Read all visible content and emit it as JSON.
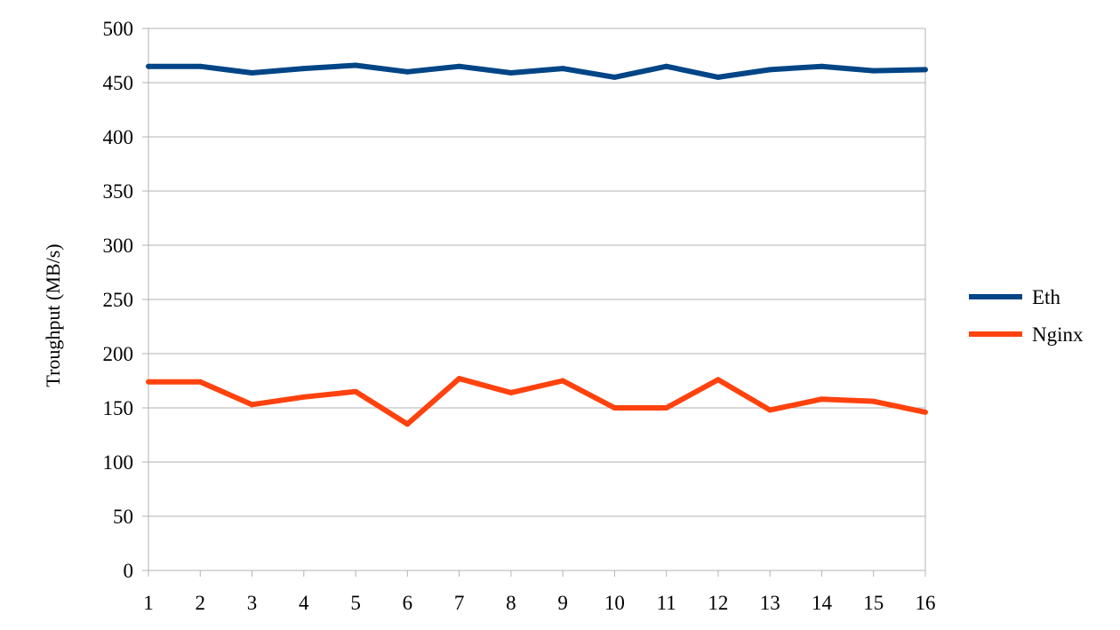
{
  "chart_data": {
    "type": "line",
    "title": "",
    "xlabel": "",
    "ylabel": "Troughput (MB/s)",
    "x": [
      1,
      2,
      3,
      4,
      5,
      6,
      7,
      8,
      9,
      10,
      11,
      12,
      13,
      14,
      15,
      16
    ],
    "x_tick_labels": [
      "1",
      "2",
      "3",
      "4",
      "5",
      "6",
      "7",
      "8",
      "9",
      "10",
      "11",
      "12",
      "13",
      "14",
      "15",
      "16"
    ],
    "y_ticks": [
      0,
      50,
      100,
      150,
      200,
      250,
      300,
      350,
      400,
      450,
      500
    ],
    "y_tick_labels": [
      "0",
      "50",
      "100",
      "150",
      "200",
      "250",
      "300",
      "350",
      "400",
      "450",
      "500"
    ],
    "ylim": [
      0,
      500
    ],
    "xlim": [
      1,
      16
    ],
    "grid": "horizontal",
    "legend_position": "right",
    "series": [
      {
        "name": "Eth",
        "color": "#004586",
        "values": [
          465,
          465,
          459,
          463,
          466,
          460,
          465,
          459,
          463,
          455,
          465,
          455,
          462,
          465,
          461,
          462
        ]
      },
      {
        "name": "Nginx",
        "color": "#ff420e",
        "values": [
          174,
          174,
          153,
          160,
          165,
          135,
          177,
          164,
          175,
          150,
          150,
          176,
          148,
          158,
          156,
          146
        ]
      }
    ]
  }
}
